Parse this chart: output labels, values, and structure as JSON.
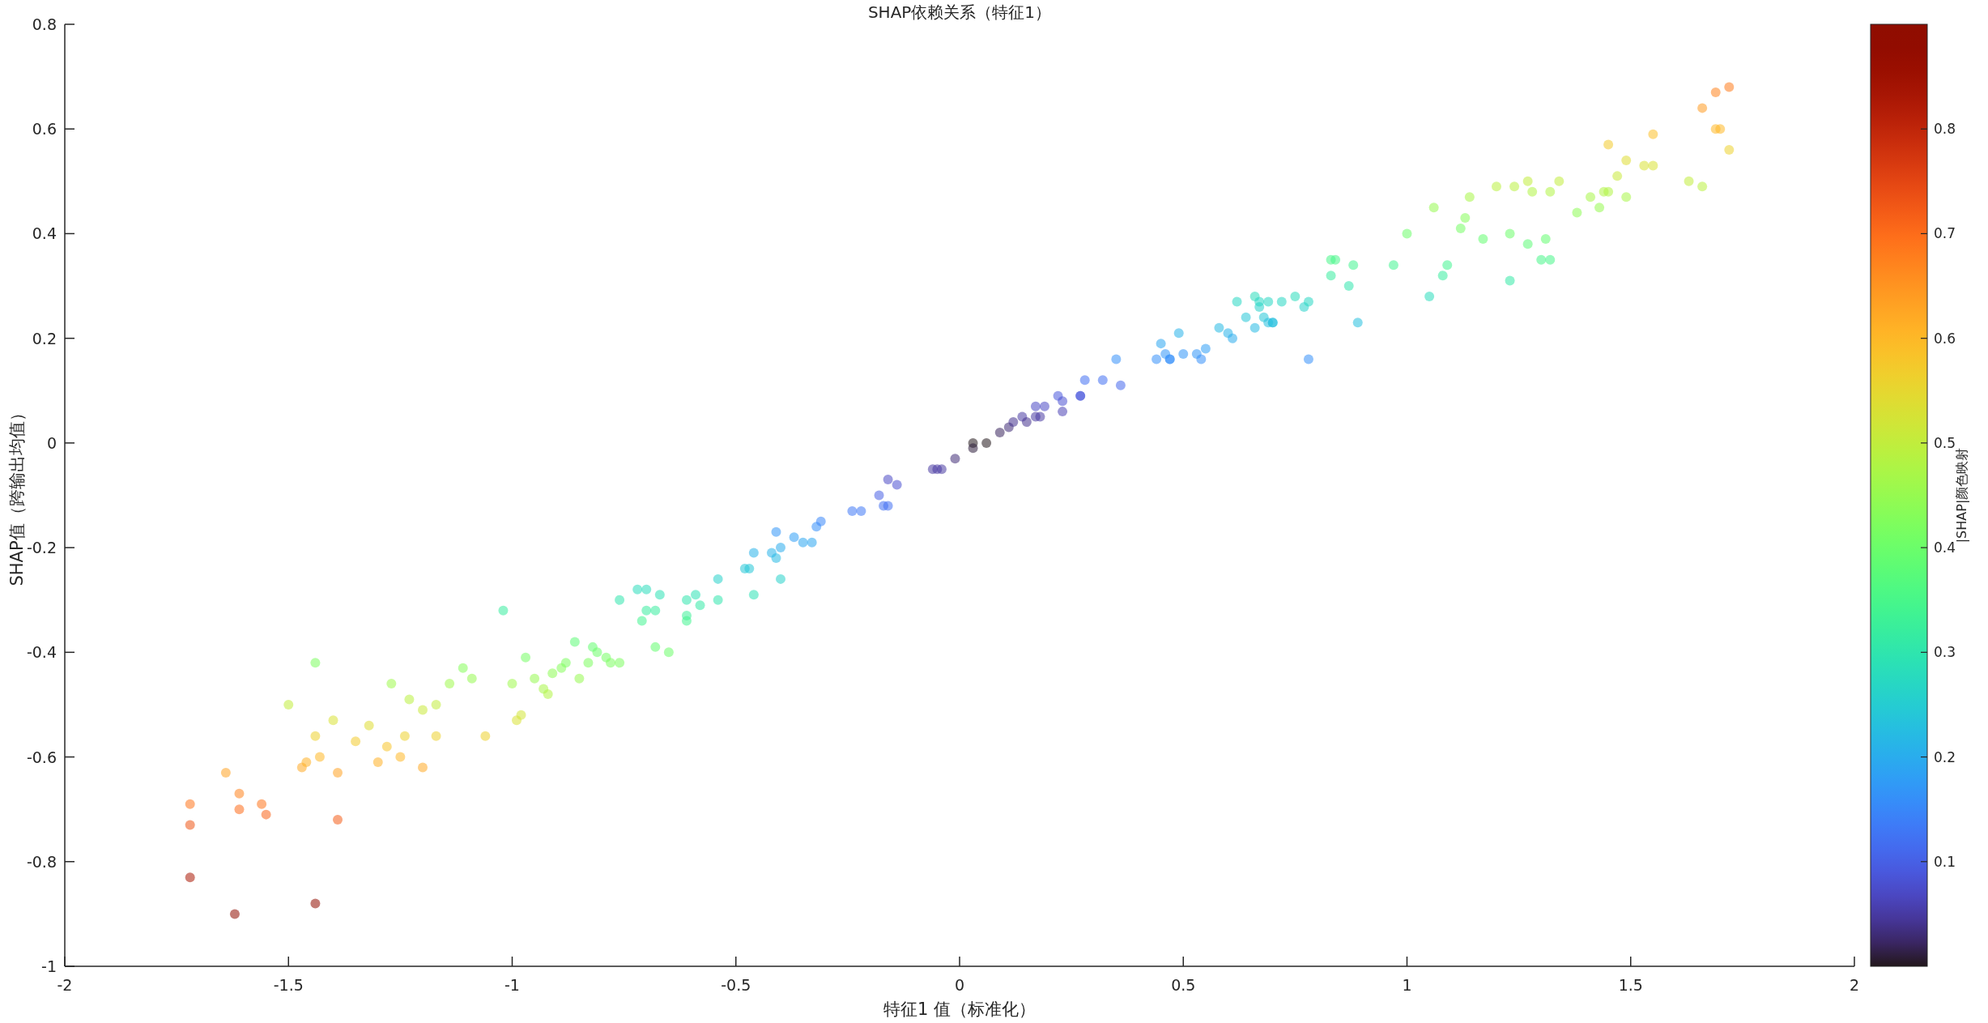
{
  "chart_data": {
    "type": "scatter",
    "title": "SHAP依赖关系（特征1）",
    "xlabel": "特征1 值（标准化）",
    "ylabel": "SHAP值（跨输出均值）",
    "clabel": "|SHAP|颜色映射",
    "xlim": [
      -2,
      2
    ],
    "ylim": [
      -1,
      0.8
    ],
    "xticks": [
      -2,
      -1.5,
      -1,
      -0.5,
      0,
      0.5,
      1,
      1.5,
      2
    ],
    "yticks": [
      -1,
      -0.8,
      -0.6,
      -0.4,
      -0.2,
      0,
      0.2,
      0.4,
      0.6,
      0.8
    ],
    "clim": [
      0,
      0.9
    ],
    "cticks": [
      0.1,
      0.2,
      0.3,
      0.4,
      0.5,
      0.6,
      0.7,
      0.8
    ],
    "x": [
      -1.72,
      -1.72,
      -1.72,
      -1.62,
      -1.44,
      -1.64,
      -1.61,
      -1.61,
      -1.56,
      -1.55,
      -1.39,
      -1.5,
      -1.44,
      -1.47,
      -1.46,
      -1.44,
      -1.43,
      -1.4,
      -1.39,
      -1.35,
      -1.32,
      -1.3,
      -1.28,
      -1.27,
      -1.25,
      -1.24,
      -1.23,
      -1.2,
      -1.2,
      -1.17,
      -1.17,
      -1.14,
      -1.11,
      -1.09,
      -1.06,
      -1.02,
      -1.0,
      -0.99,
      -0.98,
      -0.97,
      -0.95,
      -0.93,
      -0.92,
      -0.91,
      -0.89,
      -0.88,
      -0.86,
      -0.85,
      -0.83,
      -0.82,
      -0.81,
      -0.79,
      -0.78,
      -0.76,
      -0.76,
      -0.72,
      -0.71,
      -0.7,
      -0.7,
      -0.68,
      -0.68,
      -0.67,
      -0.65,
      -0.61,
      -0.61,
      -0.61,
      -0.59,
      -0.58,
      -0.54,
      -0.54,
      -0.48,
      -0.47,
      -0.46,
      -0.46,
      -0.42,
      -0.41,
      -0.41,
      -0.4,
      -0.4,
      -0.37,
      -0.35,
      -0.33,
      -0.32,
      -0.31,
      -0.24,
      -0.22,
      -0.18,
      -0.17,
      -0.16,
      -0.16,
      -0.14,
      -0.06,
      -0.05,
      -0.04,
      -0.01,
      0.03,
      0.03,
      0.06,
      0.09,
      0.11,
      0.12,
      0.14,
      0.15,
      0.17,
      0.17,
      0.18,
      0.19,
      0.22,
      0.23,
      0.23,
      0.27,
      0.28,
      0.27,
      0.32,
      0.35,
      0.36,
      0.44,
      0.45,
      0.46,
      0.47,
      0.47,
      0.49,
      0.5,
      0.53,
      0.54,
      0.55,
      0.58,
      0.6,
      0.61,
      0.62,
      0.64,
      0.66,
      0.66,
      0.67,
      0.67,
      0.68,
      0.69,
      0.69,
      0.7,
      0.7,
      0.72,
      0.75,
      0.77,
      0.78,
      0.78,
      0.83,
      0.83,
      0.84,
      0.87,
      0.88,
      0.89,
      0.97,
      1.0,
      1.05,
      1.06,
      1.08,
      1.09,
      1.12,
      1.13,
      1.14,
      1.17,
      1.2,
      1.23,
      1.23,
      1.24,
      1.27,
      1.27,
      1.28,
      1.3,
      1.31,
      1.32,
      1.32,
      1.34,
      1.38,
      1.41,
      1.43,
      1.44,
      1.45,
      1.45,
      1.47,
      1.49,
      1.49,
      1.53,
      1.55,
      1.55,
      1.63,
      1.66,
      1.66,
      1.69,
      1.69,
      1.7,
      1.72,
      1.72
    ],
    "values": [
      -0.69,
      -0.73,
      -0.83,
      -0.9,
      -0.88,
      -0.63,
      -0.67,
      -0.7,
      -0.69,
      -0.71,
      -0.72,
      -0.5,
      -0.42,
      -0.62,
      -0.61,
      -0.56,
      -0.6,
      -0.53,
      -0.63,
      -0.57,
      -0.54,
      -0.61,
      -0.58,
      -0.46,
      -0.6,
      -0.56,
      -0.49,
      -0.62,
      -0.51,
      -0.5,
      -0.56,
      -0.46,
      -0.43,
      -0.45,
      -0.56,
      -0.32,
      -0.46,
      -0.53,
      -0.52,
      -0.41,
      -0.45,
      -0.47,
      -0.48,
      -0.44,
      -0.43,
      -0.42,
      -0.38,
      -0.45,
      -0.42,
      -0.39,
      -0.4,
      -0.41,
      -0.42,
      -0.42,
      -0.3,
      -0.28,
      -0.34,
      -0.28,
      -0.32,
      -0.39,
      -0.32,
      -0.29,
      -0.4,
      -0.33,
      -0.3,
      -0.34,
      -0.29,
      -0.31,
      -0.3,
      -0.26,
      -0.24,
      -0.24,
      -0.21,
      -0.29,
      -0.21,
      -0.17,
      -0.22,
      -0.2,
      -0.26,
      -0.18,
      -0.19,
      -0.19,
      -0.16,
      -0.15,
      -0.13,
      -0.13,
      -0.1,
      -0.12,
      -0.12,
      -0.07,
      -0.08,
      -0.05,
      -0.05,
      -0.05,
      -0.03,
      0.0,
      -0.01,
      0.0,
      0.02,
      0.03,
      0.04,
      0.05,
      0.04,
      0.05,
      0.07,
      0.05,
      0.07,
      0.09,
      0.08,
      0.06,
      0.09,
      0.12,
      0.09,
      0.12,
      0.16,
      0.11,
      0.16,
      0.19,
      0.17,
      0.16,
      0.16,
      0.21,
      0.17,
      0.17,
      0.16,
      0.18,
      0.22,
      0.21,
      0.2,
      0.27,
      0.24,
      0.28,
      0.22,
      0.26,
      0.27,
      0.24,
      0.23,
      0.27,
      0.23,
      0.23,
      0.27,
      0.28,
      0.26,
      0.27,
      0.16,
      0.32,
      0.35,
      0.35,
      0.3,
      0.34,
      0.23,
      0.34,
      0.4,
      0.28,
      0.45,
      0.32,
      0.34,
      0.41,
      0.43,
      0.47,
      0.39,
      0.49,
      0.4,
      0.31,
      0.49,
      0.38,
      0.5,
      0.48,
      0.35,
      0.39,
      0.35,
      0.48,
      0.5,
      0.44,
      0.47,
      0.45,
      0.48,
      0.57,
      0.48,
      0.51,
      0.47,
      0.54,
      0.53,
      0.59,
      0.53,
      0.5,
      0.49,
      0.64,
      0.67,
      0.6,
      0.6,
      0.68,
      0.56
    ],
    "cvalues": [
      0.69,
      0.73,
      0.83,
      0.9,
      0.88,
      0.63,
      0.67,
      0.7,
      0.69,
      0.71,
      0.72,
      0.5,
      0.42,
      0.62,
      0.61,
      0.56,
      0.6,
      0.53,
      0.63,
      0.57,
      0.54,
      0.61,
      0.58,
      0.46,
      0.6,
      0.56,
      0.49,
      0.62,
      0.51,
      0.5,
      0.56,
      0.46,
      0.43,
      0.45,
      0.56,
      0.32,
      0.46,
      0.53,
      0.52,
      0.41,
      0.45,
      0.47,
      0.48,
      0.44,
      0.43,
      0.42,
      0.38,
      0.45,
      0.42,
      0.39,
      0.4,
      0.41,
      0.42,
      0.42,
      0.3,
      0.28,
      0.34,
      0.28,
      0.32,
      0.39,
      0.32,
      0.29,
      0.4,
      0.33,
      0.3,
      0.34,
      0.29,
      0.31,
      0.3,
      0.26,
      0.24,
      0.24,
      0.21,
      0.29,
      0.21,
      0.17,
      0.22,
      0.2,
      0.26,
      0.18,
      0.19,
      0.19,
      0.16,
      0.15,
      0.13,
      0.13,
      0.1,
      0.12,
      0.12,
      0.07,
      0.08,
      0.05,
      0.05,
      0.05,
      0.03,
      0.0,
      0.01,
      0.0,
      0.02,
      0.03,
      0.04,
      0.05,
      0.04,
      0.05,
      0.07,
      0.05,
      0.07,
      0.09,
      0.08,
      0.06,
      0.09,
      0.12,
      0.09,
      0.12,
      0.16,
      0.11,
      0.16,
      0.19,
      0.17,
      0.16,
      0.16,
      0.21,
      0.17,
      0.17,
      0.16,
      0.18,
      0.22,
      0.21,
      0.2,
      0.27,
      0.24,
      0.28,
      0.22,
      0.26,
      0.27,
      0.24,
      0.23,
      0.27,
      0.23,
      0.23,
      0.27,
      0.28,
      0.26,
      0.27,
      0.16,
      0.32,
      0.35,
      0.35,
      0.3,
      0.34,
      0.23,
      0.34,
      0.4,
      0.28,
      0.45,
      0.32,
      0.34,
      0.41,
      0.43,
      0.47,
      0.39,
      0.49,
      0.4,
      0.31,
      0.49,
      0.38,
      0.5,
      0.48,
      0.35,
      0.39,
      0.35,
      0.48,
      0.5,
      0.44,
      0.47,
      0.45,
      0.48,
      0.57,
      0.48,
      0.51,
      0.47,
      0.54,
      0.53,
      0.59,
      0.53,
      0.5,
      0.49,
      0.64,
      0.67,
      0.6,
      0.6,
      0.68,
      0.56
    ]
  }
}
